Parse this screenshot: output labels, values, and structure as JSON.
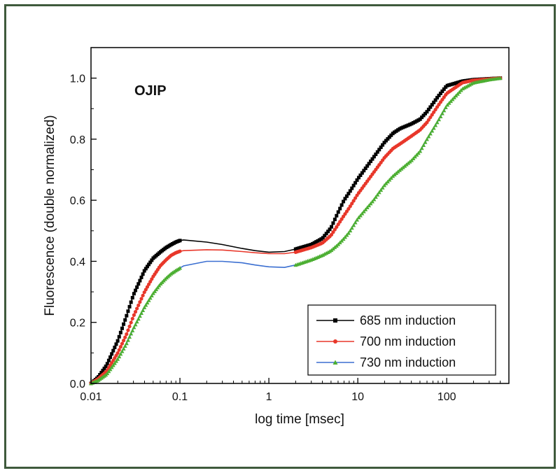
{
  "chart_data": {
    "type": "line",
    "annotation": "OJIP",
    "xlabel": "log time [msec]",
    "ylabel": "Fluorescence (double normalized)",
    "x_scale": "log",
    "xlim": [
      0.01,
      500
    ],
    "ylim": [
      0.0,
      1.1
    ],
    "x_ticks": [
      "0.01",
      "0.1",
      "1",
      "10",
      "100"
    ],
    "x_tick_values": [
      0.01,
      0.1,
      1,
      10,
      100
    ],
    "y_ticks": [
      "0.0",
      "0.2",
      "0.4",
      "0.6",
      "0.8",
      "1.0"
    ],
    "y_tick_values": [
      0.0,
      0.2,
      0.4,
      0.6,
      0.8,
      1.0
    ],
    "grid": false,
    "legend_position": "bottom-right",
    "series": [
      {
        "name": "685 nm induction",
        "color": "#000000",
        "marker": "square",
        "x": [
          0.01,
          0.012,
          0.015,
          0.02,
          0.025,
          0.03,
          0.04,
          0.05,
          0.06,
          0.07,
          0.08,
          0.09,
          0.1,
          0.11,
          0.2,
          0.3,
          0.5,
          0.7,
          1,
          1.5,
          2,
          3,
          4,
          5,
          6,
          7,
          8,
          10,
          15,
          20,
          25,
          30,
          40,
          50,
          60,
          80,
          100,
          150,
          200,
          300,
          400
        ],
        "y": [
          0.0,
          0.02,
          0.06,
          0.14,
          0.22,
          0.29,
          0.37,
          0.41,
          0.43,
          0.445,
          0.455,
          0.463,
          0.468,
          0.47,
          0.463,
          0.455,
          0.442,
          0.435,
          0.43,
          0.432,
          0.44,
          0.455,
          0.475,
          0.51,
          0.56,
          0.6,
          0.625,
          0.67,
          0.74,
          0.79,
          0.82,
          0.835,
          0.85,
          0.865,
          0.89,
          0.94,
          0.975,
          0.99,
          0.995,
          0.998,
          1.0
        ]
      },
      {
        "name": "700 nm induction",
        "color": "#e8372a",
        "marker": "circle",
        "x": [
          0.01,
          0.012,
          0.015,
          0.02,
          0.025,
          0.03,
          0.04,
          0.05,
          0.06,
          0.07,
          0.08,
          0.09,
          0.1,
          0.11,
          0.2,
          0.3,
          0.5,
          0.7,
          1,
          1.5,
          2,
          3,
          4,
          5,
          6,
          7,
          8,
          10,
          15,
          20,
          25,
          30,
          40,
          50,
          60,
          80,
          100,
          150,
          200,
          300,
          400
        ],
        "y": [
          0.0,
          0.015,
          0.04,
          0.1,
          0.16,
          0.22,
          0.3,
          0.35,
          0.385,
          0.405,
          0.42,
          0.428,
          0.433,
          0.435,
          0.438,
          0.437,
          0.432,
          0.428,
          0.425,
          0.425,
          0.43,
          0.445,
          0.46,
          0.485,
          0.52,
          0.55,
          0.575,
          0.62,
          0.69,
          0.74,
          0.77,
          0.785,
          0.81,
          0.83,
          0.855,
          0.91,
          0.95,
          0.985,
          0.993,
          0.997,
          1.0
        ]
      },
      {
        "name": "730 nm induction",
        "color": "#3b6fd1",
        "marker": "triangle",
        "x": [
          0.01,
          0.012,
          0.015,
          0.02,
          0.025,
          0.03,
          0.04,
          0.05,
          0.06,
          0.07,
          0.08,
          0.09,
          0.1,
          0.11,
          0.2,
          0.3,
          0.5,
          0.7,
          1,
          1.5,
          2,
          3,
          4,
          5,
          6,
          7,
          8,
          10,
          15,
          20,
          25,
          30,
          40,
          50,
          60,
          80,
          100,
          150,
          200,
          300,
          400
        ],
        "y": [
          0.0,
          0.01,
          0.03,
          0.08,
          0.13,
          0.18,
          0.25,
          0.295,
          0.325,
          0.345,
          0.36,
          0.37,
          0.378,
          0.385,
          0.4,
          0.4,
          0.395,
          0.388,
          0.382,
          0.38,
          0.388,
          0.405,
          0.42,
          0.435,
          0.455,
          0.475,
          0.495,
          0.54,
          0.6,
          0.65,
          0.68,
          0.7,
          0.73,
          0.76,
          0.8,
          0.86,
          0.91,
          0.965,
          0.985,
          0.995,
          1.0
        ]
      }
    ]
  }
}
